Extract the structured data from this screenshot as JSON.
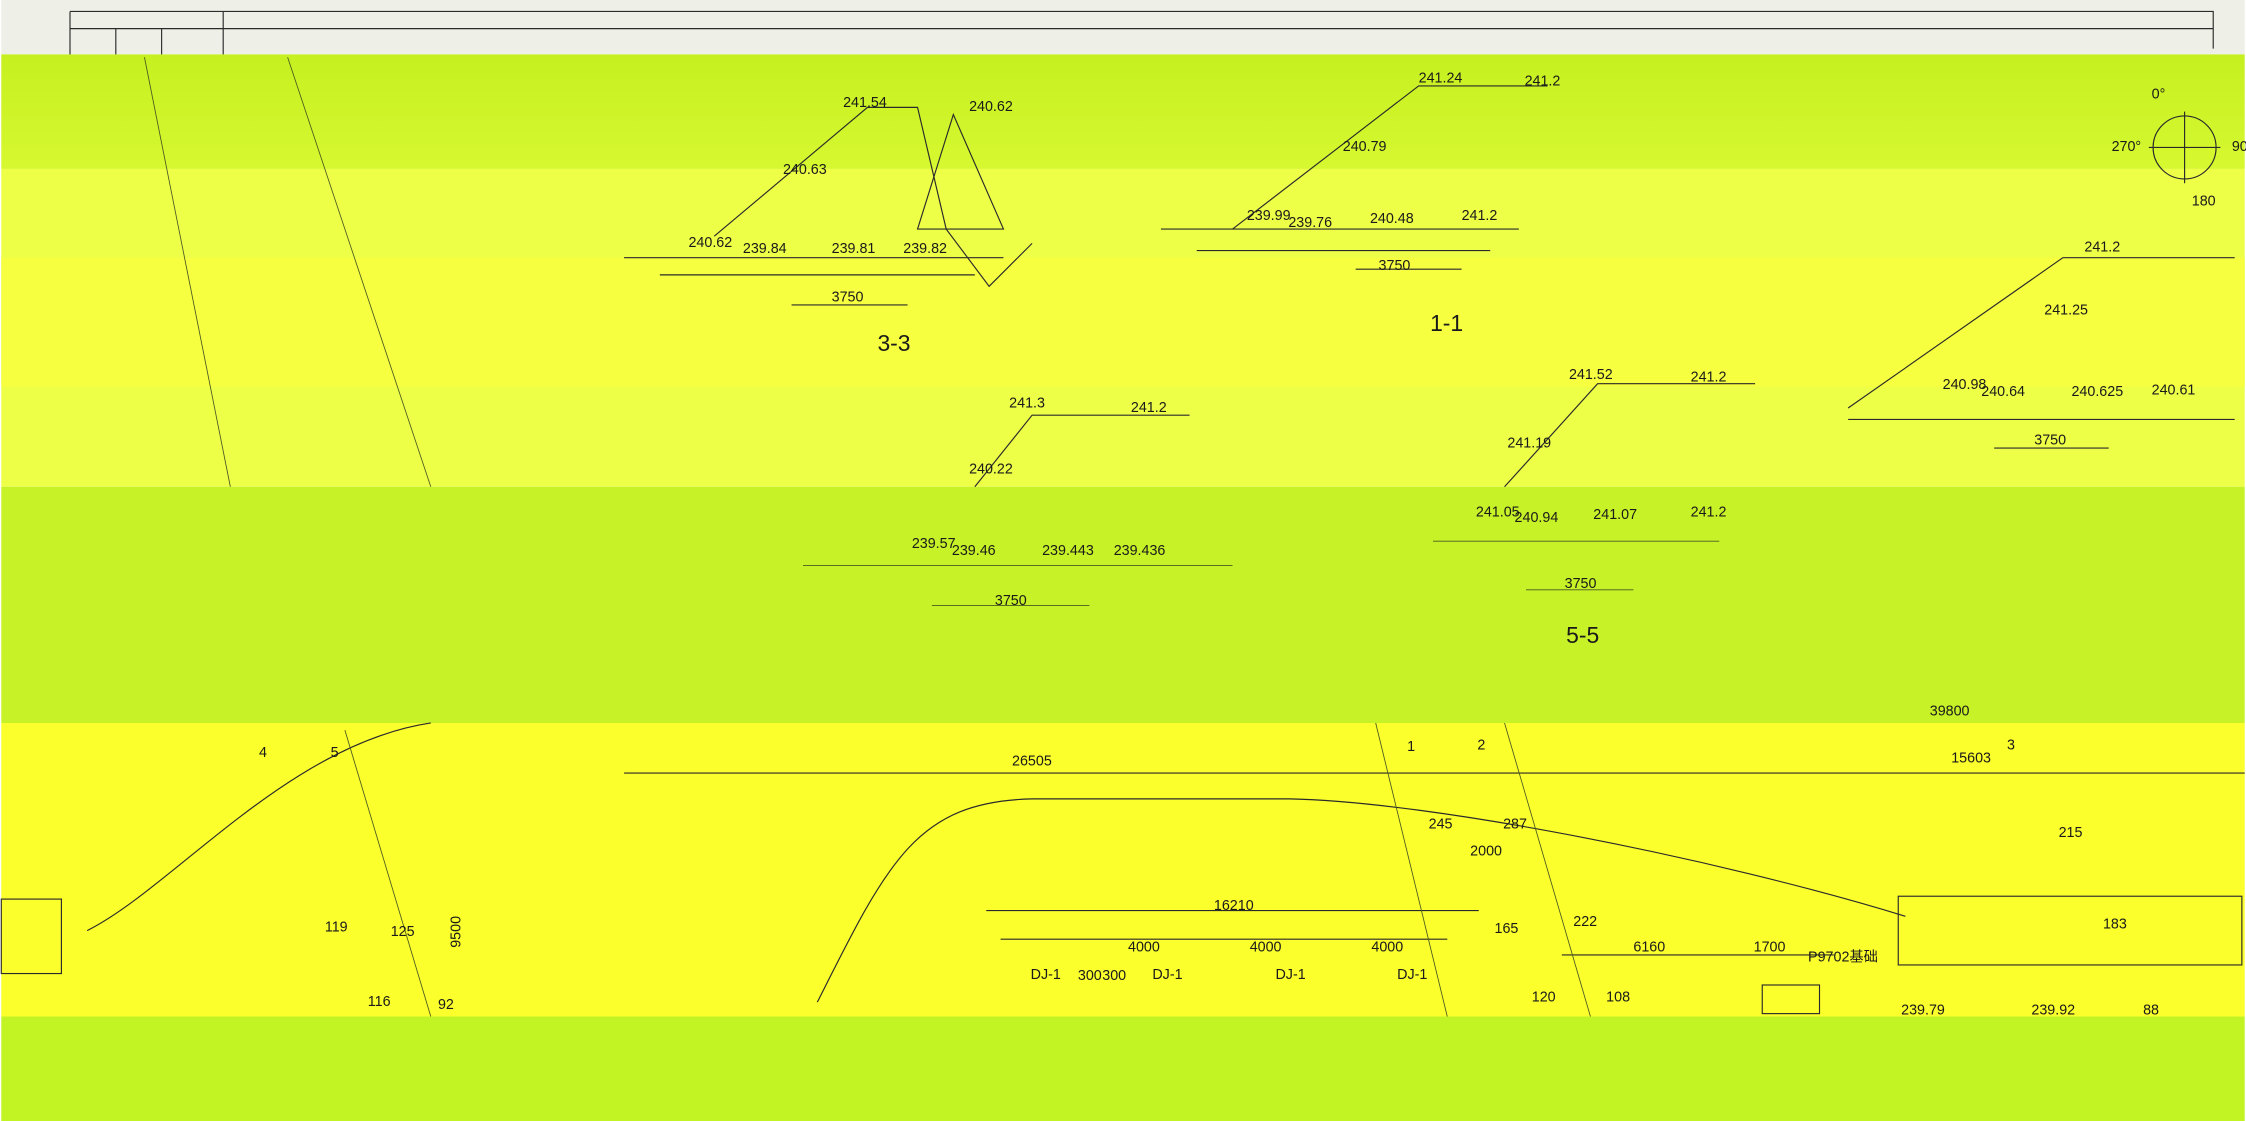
{
  "section_3_3": {
    "title": "3-3",
    "elevations": [
      "241.54",
      "240.62",
      "240.63",
      "240.62",
      "239.84",
      "239.81",
      "239.82"
    ],
    "dimension": "3750"
  },
  "section_1_1": {
    "title": "1-1",
    "elevations": [
      "241.24",
      "241.2",
      "240.79",
      "239.99",
      "239.76",
      "240.48",
      "241.2"
    ],
    "dimension": "3750"
  },
  "compass": {
    "north": "0°",
    "west": "270°",
    "east": "90",
    "south": "180"
  },
  "section_right": {
    "elevations": [
      "241.2",
      "241.25",
      "240.98",
      "240.64",
      "240.625",
      "240.61"
    ],
    "dimension": "3750"
  },
  "section_middle": {
    "elevations": [
      "241.3",
      "241.2",
      "240.22",
      "239.57",
      "239.46",
      "239.443",
      "239.436"
    ],
    "dimension": "3750"
  },
  "section_5_5": {
    "title": "5-5",
    "elevations": [
      "241.52",
      "241.2",
      "241.19",
      "241.05",
      "240.94",
      "241.07",
      "241.2"
    ],
    "dimension": "3750"
  },
  "plan": {
    "axes": [
      "4",
      "5",
      "1",
      "2",
      "3"
    ],
    "dimensions": [
      "39800",
      "26505",
      "15603",
      "16210",
      "4000",
      "4000",
      "4000",
      "2000",
      "6160",
      "1700",
      "9500",
      "300",
      "300"
    ],
    "points": [
      "245",
      "287",
      "222",
      "165",
      "183",
      "215",
      "119",
      "125",
      "116",
      "92",
      "120",
      "108",
      "88"
    ],
    "foundations": [
      "DJ-1",
      "DJ-1",
      "DJ-1",
      "DJ-1",
      "P9702基础"
    ],
    "elevations": [
      "239.79",
      "239.92"
    ]
  }
}
